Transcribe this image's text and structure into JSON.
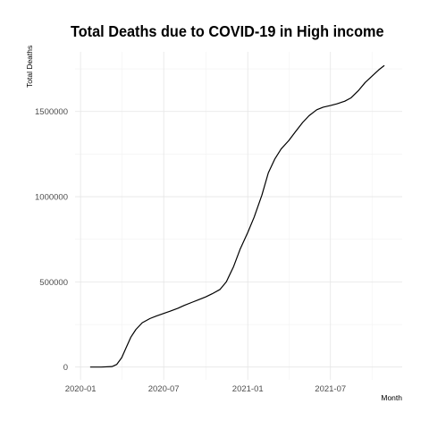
{
  "chart_data": {
    "type": "line",
    "title": "Total Deaths due to COVID-19 in High income",
    "xlabel": "Month",
    "ylabel": "Total Deaths",
    "x_ticks": [
      "2020-01",
      "2020-07",
      "2021-01",
      "2021-07"
    ],
    "y_ticks": [
      "0",
      "500000",
      "1000000",
      "1500000"
    ],
    "y_tick_values": [
      0,
      500000,
      1000000,
      1500000
    ],
    "xlim": [
      "2019-12-20",
      "2021-12-05"
    ],
    "ylim": [
      -75000,
      1850000
    ],
    "grid": true,
    "line_color": "#000000",
    "series": [
      {
        "x": [
          "2020-01-22",
          "2020-02-15",
          "2020-03-10",
          "2020-03-20",
          "2020-03-31",
          "2020-04-10",
          "2020-04-20",
          "2020-05-01",
          "2020-05-15",
          "2020-06-01",
          "2020-06-15",
          "2020-07-01",
          "2020-07-15",
          "2020-08-01",
          "2020-08-15",
          "2020-09-01",
          "2020-09-15",
          "2020-10-01",
          "2020-10-15",
          "2020-11-01",
          "2020-11-15",
          "2020-12-01",
          "2020-12-15",
          "2021-01-01",
          "2021-01-15",
          "2021-02-01",
          "2021-02-15",
          "2021-03-01",
          "2021-03-15",
          "2021-04-01",
          "2021-04-15",
          "2021-05-01",
          "2021-05-15",
          "2021-06-01",
          "2021-06-15",
          "2021-07-01",
          "2021-07-15",
          "2021-08-01",
          "2021-08-15",
          "2021-09-01",
          "2021-09-15",
          "2021-10-01",
          "2021-10-15",
          "2021-10-27"
        ],
        "y": [
          0,
          100,
          3000,
          15000,
          55000,
          115000,
          175000,
          220000,
          260000,
          285000,
          300000,
          315000,
          328000,
          345000,
          362000,
          380000,
          395000,
          412000,
          430000,
          455000,
          500000,
          590000,
          690000,
          790000,
          880000,
          1010000,
          1140000,
          1220000,
          1280000,
          1330000,
          1380000,
          1435000,
          1475000,
          1510000,
          1525000,
          1535000,
          1545000,
          1560000,
          1580000,
          1625000,
          1670000,
          1710000,
          1745000,
          1770000
        ]
      }
    ]
  }
}
